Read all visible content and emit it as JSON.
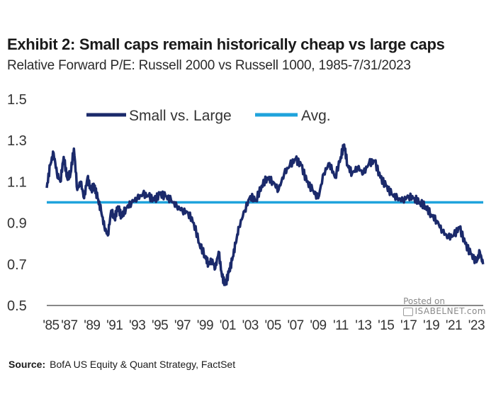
{
  "header": {
    "title": "Exhibit 2: Small caps remain historically cheap vs large caps",
    "subtitle": "Relative Forward P/E: Russell 2000 vs Russell 1000, 1985-7/31/2023"
  },
  "source": {
    "label": "Source:",
    "text": "BofA US Equity & Quant Strategy, FactSet"
  },
  "watermark": {
    "posted": "Posted on",
    "site": "ISABELNET.com"
  },
  "colors": {
    "series": "#1b2a6b",
    "avg": "#1fa3dc",
    "axis": "#888888"
  },
  "chart_data": {
    "type": "line",
    "ylim": [
      0.5,
      1.5
    ],
    "yticks": [
      "0.5",
      "0.7",
      "0.9",
      "1.1",
      "1.3",
      "1.5"
    ],
    "xticks": [
      "'85",
      "'87",
      "'89",
      "'91",
      "'93",
      "'95",
      "'97",
      "'99",
      "'01",
      "'03",
      "'05",
      "'07",
      "'09",
      "'11",
      "'13",
      "'15",
      "'17",
      "'19",
      "'21",
      "'23"
    ],
    "xlim": [
      1985,
      2023.6
    ],
    "legend_position": "top",
    "series": [
      {
        "name": "Small vs. Large",
        "x": [
          1985.0,
          1985.3,
          1985.6,
          1985.9,
          1986.2,
          1986.5,
          1986.8,
          1987.1,
          1987.4,
          1987.7,
          1988.0,
          1988.3,
          1988.6,
          1988.9,
          1989.2,
          1989.5,
          1989.8,
          1990.1,
          1990.4,
          1990.7,
          1991.0,
          1991.3,
          1991.6,
          1992.0,
          1992.5,
          1993.0,
          1993.5,
          1994.0,
          1994.5,
          1995.0,
          1995.5,
          1996.0,
          1996.5,
          1997.0,
          1997.5,
          1998.0,
          1998.5,
          1999.0,
          1999.3,
          1999.6,
          1999.9,
          2000.2,
          2000.5,
          2000.8,
          2001.1,
          2001.4,
          2001.7,
          2002.0,
          2002.5,
          2003.0,
          2003.5,
          2004.0,
          2004.5,
          2005.0,
          2005.5,
          2006.0,
          2006.5,
          2007.0,
          2007.5,
          2008.0,
          2008.5,
          2009.0,
          2009.5,
          2010.0,
          2010.5,
          2011.0,
          2011.3,
          2011.6,
          2012.0,
          2012.5,
          2013.0,
          2013.5,
          2014.0,
          2014.5,
          2015.0,
          2015.5,
          2016.0,
          2016.5,
          2017.0,
          2017.5,
          2018.0,
          2018.5,
          2019.0,
          2019.5,
          2020.0,
          2020.5,
          2021.0,
          2021.5,
          2022.0,
          2022.5,
          2023.0,
          2023.3,
          2023.58
        ],
        "values": [
          1.07,
          1.18,
          1.24,
          1.14,
          1.1,
          1.22,
          1.12,
          1.14,
          1.26,
          1.06,
          1.1,
          1.02,
          1.12,
          1.06,
          1.08,
          1.02,
          0.96,
          0.88,
          0.84,
          0.96,
          0.92,
          0.98,
          0.93,
          0.97,
          1.0,
          1.02,
          1.04,
          1.03,
          1.01,
          1.04,
          1.03,
          1.01,
          0.98,
          0.96,
          0.95,
          0.9,
          0.8,
          0.74,
          0.7,
          0.72,
          0.68,
          0.76,
          0.64,
          0.6,
          0.66,
          0.72,
          0.8,
          0.88,
          0.96,
          1.03,
          1.01,
          1.08,
          1.12,
          1.1,
          1.06,
          1.14,
          1.18,
          1.21,
          1.18,
          1.1,
          1.06,
          1.02,
          1.14,
          1.19,
          1.12,
          1.22,
          1.28,
          1.18,
          1.14,
          1.17,
          1.14,
          1.19,
          1.2,
          1.12,
          1.08,
          1.04,
          1.02,
          1.01,
          1.03,
          1.02,
          1.0,
          0.98,
          0.94,
          0.91,
          0.86,
          0.83,
          0.84,
          0.88,
          0.8,
          0.75,
          0.71,
          0.76,
          0.7
        ]
      },
      {
        "name": "Avg.",
        "values": [
          1.0
        ]
      }
    ]
  }
}
